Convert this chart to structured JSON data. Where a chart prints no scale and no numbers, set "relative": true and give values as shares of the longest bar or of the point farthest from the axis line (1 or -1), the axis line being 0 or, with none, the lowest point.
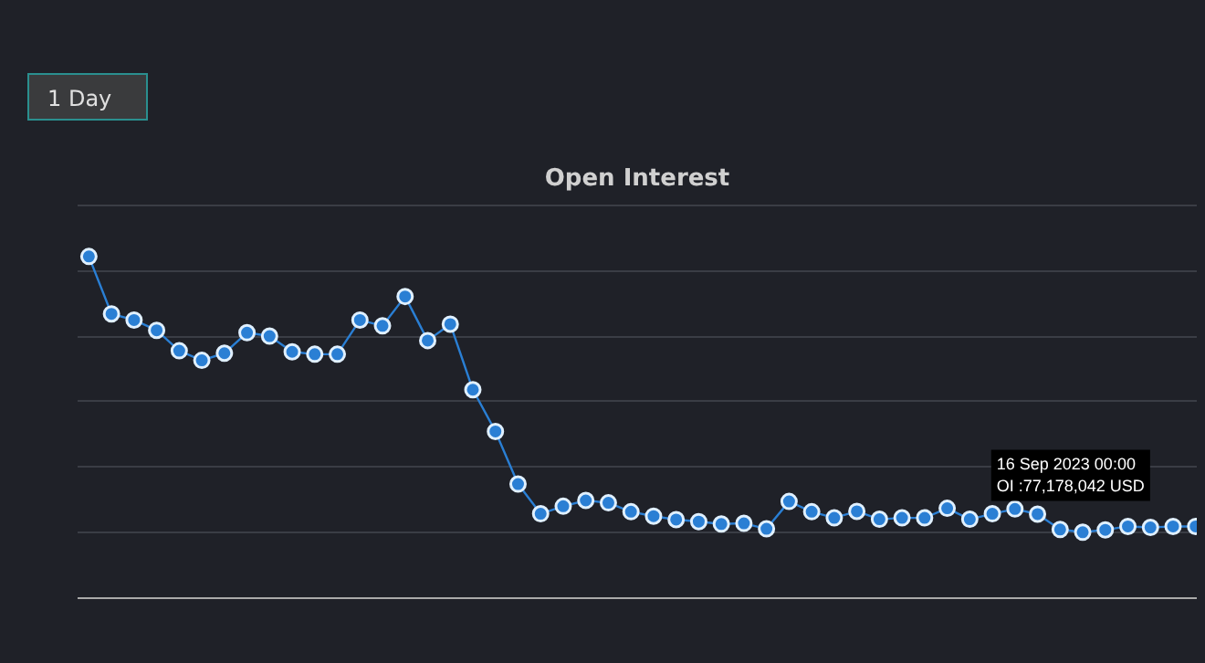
{
  "chart_data": {
    "type": "line",
    "title": "Open Interest",
    "relative": true,
    "grid": "y",
    "marker": "circle",
    "line_style": "solid",
    "categories": [
      null,
      null,
      null,
      null,
      null,
      null,
      null,
      null,
      null,
      null,
      null,
      null,
      null,
      null,
      null,
      null,
      null,
      null,
      null,
      null,
      null,
      null,
      null,
      null,
      null,
      null,
      null,
      null,
      null,
      null,
      null,
      null,
      null,
      null,
      null,
      null,
      null,
      null,
      null,
      null,
      null,
      null,
      null,
      null,
      null,
      null,
      null,
      null,
      null,
      null
    ],
    "series": [
      {
        "color": "#2a7fd4",
        "values": [
          1,
          0.832,
          0.814,
          0.784,
          0.724,
          0.696,
          0.717,
          0.777,
          0.767,
          0.721,
          0.714,
          0.714,
          0.814,
          0.797,
          0.883,
          0.754,
          0.802,
          0.61,
          0.488,
          0.334,
          0.247,
          0.269,
          0.286,
          0.279,
          0.253,
          0.24,
          0.23,
          0.224,
          0.217,
          0.219,
          0.203,
          0.283,
          0.253,
          0.235,
          0.254,
          0.231,
          0.235,
          0.235,
          0.263,
          0.231,
          0.247,
          0.261,
          0.246,
          0.201,
          0.193,
          0.2,
          0.21,
          0.207,
          0.21,
          0.21
        ]
      }
    ],
    "annotations": [
      "1 Day",
      "16 Sep 2023 00:00\nOI :77,178,042 USD"
    ]
  }
}
